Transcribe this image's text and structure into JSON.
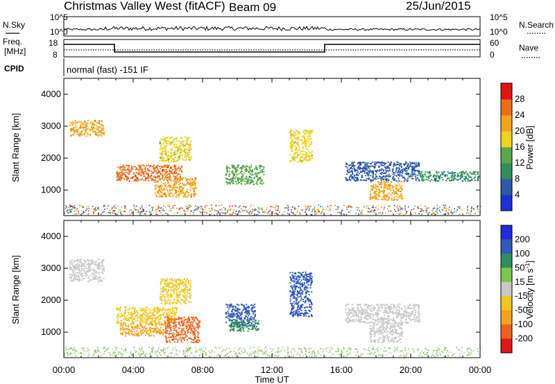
{
  "header": {
    "station": "Christmas Valley West (fitACF)",
    "beam": "Beam 09",
    "date": "25/Jun/2015"
  },
  "noise_panel": {
    "left_label": "N.Sky",
    "right_label": "N.Search",
    "left_ticks": [
      "10^5",
      "10^0"
    ],
    "right_ticks": [
      "10^5",
      "10^0"
    ]
  },
  "freq_panel": {
    "left_label_1": "Freq.",
    "left_label_2": "[MHz]",
    "right_label": "Nave",
    "left_ticks": [
      "18",
      "8"
    ],
    "right_ticks": [
      "60",
      "0"
    ]
  },
  "cpid": {
    "label": "CPID",
    "text": "normal (fast) -151 IF"
  },
  "colors": {
    "power": [
      "#1c2fd9",
      "#2e58a8",
      "#2e8f5a",
      "#5aa84a",
      "#f0d41c",
      "#f5a31a",
      "#f06b14",
      "#e11414"
    ],
    "velocity": [
      "#e01515",
      "#f0621a",
      "#f5a31a",
      "#f0c81c",
      "#c8c8c8",
      "#7ac94a",
      "#2e8f5a",
      "#2f5bb8",
      "#1f2bd8"
    ]
  },
  "chart_data": [
    {
      "type": "heatmap",
      "quantity": "power",
      "ylabel": "Slant Range [km]",
      "yticks": [
        "1000",
        "2000",
        "3000",
        "4000"
      ],
      "ylim": [
        200,
        4500
      ],
      "xlim_hours": [
        0,
        24
      ],
      "colorbar_label": "Power [dB]",
      "colorbar_ticks": [
        "4",
        "8",
        "12",
        "16",
        "20",
        "24",
        "28"
      ],
      "colorbar_range": [
        0,
        32
      ],
      "echo_regions": [
        {
          "t_start": 0.3,
          "t_end": 2.3,
          "r_start": 2700,
          "r_end": 3200,
          "value": 20
        },
        {
          "t_start": 3.0,
          "t_end": 6.8,
          "r_start": 1300,
          "r_end": 1800,
          "value": 26
        },
        {
          "t_start": 5.2,
          "t_end": 7.6,
          "r_start": 800,
          "r_end": 1400,
          "value": 22
        },
        {
          "t_start": 5.5,
          "t_end": 7.3,
          "r_start": 1900,
          "r_end": 2700,
          "value": 18
        },
        {
          "t_start": 9.3,
          "t_end": 11.5,
          "r_start": 1200,
          "r_end": 1800,
          "value": 12
        },
        {
          "t_start": 13.0,
          "t_end": 14.3,
          "r_start": 1900,
          "r_end": 2900,
          "value": 18
        },
        {
          "t_start": 16.2,
          "t_end": 20.5,
          "r_start": 1300,
          "r_end": 1900,
          "value": 6
        },
        {
          "t_start": 17.6,
          "t_end": 19.5,
          "r_start": 700,
          "r_end": 1300,
          "value": 20
        },
        {
          "t_start": 20.5,
          "t_end": 23.9,
          "r_start": 1300,
          "r_end": 1600,
          "value": 8
        }
      ]
    },
    {
      "type": "heatmap",
      "quantity": "velocity",
      "ylabel": "Slant Range [km]",
      "yticks": [
        "1000",
        "2000",
        "3000",
        "4000"
      ],
      "ylim": [
        200,
        4500
      ],
      "xlim_hours": [
        0,
        24
      ],
      "xticks": [
        "00:00",
        "04:00",
        "08:00",
        "12:00",
        "16:00",
        "20:00",
        "00:00"
      ],
      "xlabel": "Time UT",
      "colorbar_label": "Velocity [m s^-1]",
      "colorbar_ticks": [
        "200",
        "100",
        "50",
        "15",
        "-15",
        "-50",
        "-100",
        "-200"
      ],
      "colorbar_range": [
        -250,
        250
      ],
      "echo_regions": [
        {
          "t_start": 0.3,
          "t_end": 2.3,
          "r_start": 2600,
          "r_end": 3300,
          "value": 0
        },
        {
          "t_start": 3.0,
          "t_end": 6.5,
          "r_start": 1300,
          "r_end": 1800,
          "value": -40
        },
        {
          "t_start": 3.2,
          "t_end": 5.8,
          "r_start": 900,
          "r_end": 1300,
          "value": -60
        },
        {
          "t_start": 5.8,
          "t_end": 7.8,
          "r_start": 700,
          "r_end": 1500,
          "value": -180
        },
        {
          "t_start": 5.5,
          "t_end": 7.3,
          "r_start": 1900,
          "r_end": 2700,
          "value": -30
        },
        {
          "t_start": 9.3,
          "t_end": 11.0,
          "r_start": 1200,
          "r_end": 1900,
          "value": 150
        },
        {
          "t_start": 9.5,
          "t_end": 11.2,
          "r_start": 1050,
          "r_end": 1400,
          "value": 70
        },
        {
          "t_start": 13.0,
          "t_end": 14.3,
          "r_start": 1500,
          "r_end": 2900,
          "value": 200
        },
        {
          "t_start": 16.2,
          "t_end": 20.5,
          "r_start": 1300,
          "r_end": 1900,
          "value": 0
        },
        {
          "t_start": 17.6,
          "t_end": 19.5,
          "r_start": 700,
          "r_end": 1300,
          "value": 0
        }
      ]
    }
  ]
}
